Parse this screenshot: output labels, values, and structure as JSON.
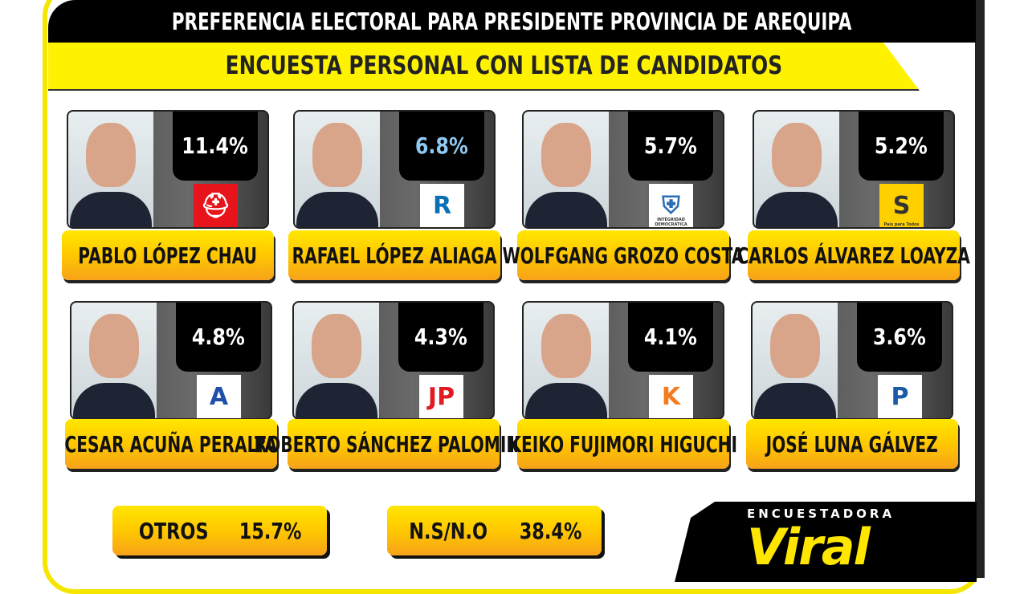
{
  "title": "PREFERENCIA ELECTORAL PARA PRESIDENTE PROVINCIA DE AREQUIPA",
  "subtitle": "ENCUESTA PERSONAL CON LISTA DE CANDIDATOS",
  "candidates": [
    {
      "name": "PABLO LÓPEZ CHAU",
      "percent": "11.4%",
      "party_logo": "helmet-icon",
      "logo_color": "#e8141b",
      "pct_color": "#ffffff"
    },
    {
      "name": "RAFAEL LÓPEZ ALIAGA",
      "percent": "6.8%",
      "party_logo": "letter-r-icon",
      "logo_color": "#0a6fb5",
      "pct_color": "#8fc8f0"
    },
    {
      "name": "WOLFGANG GROZO COSTA",
      "percent": "5.7%",
      "party_logo": "handshake-shield-icon",
      "logo_color": "#2a6db5",
      "pct_color": "#ffffff",
      "logo_text": "INTEGRIDAD DEMOCRÁTICA"
    },
    {
      "name": "CARLOS ÁLVAREZ LOAYZA",
      "percent": "5.2%",
      "party_logo": "road-icon",
      "logo_color": "#ffd000",
      "pct_color": "#ffffff",
      "logo_text": "País para Todos"
    },
    {
      "name": "CESAR ACUÑA PERALTA",
      "percent": "4.8%",
      "party_logo": "letter-a-icon",
      "logo_color": "#1f4fa8",
      "pct_color": "#ffffff"
    },
    {
      "name": "ROBERTO SÁNCHEZ PALOMINO",
      "percent": "4.3%",
      "party_logo": "jp-icon",
      "logo_color": "#e01b22",
      "pct_color": "#ffffff"
    },
    {
      "name": "KEIKO FUJIMORI HIGUCHI",
      "percent": "4.1%",
      "party_logo": "letter-k-icon",
      "logo_color": "#f47b20",
      "pct_color": "#ffffff"
    },
    {
      "name": "JOSÉ LUNA GÁLVEZ",
      "percent": "3.6%",
      "party_logo": "letter-p-icon",
      "logo_color": "#1a5aa6",
      "pct_color": "#ffffff"
    }
  ],
  "others": {
    "label": "OTROS",
    "value": "15.7%"
  },
  "undecided": {
    "label": "N.S/N.O",
    "value": "38.4%"
  },
  "brand": {
    "line1": "ENCUESTADORA",
    "line2": "Viral",
    "color": "#ffe600"
  }
}
